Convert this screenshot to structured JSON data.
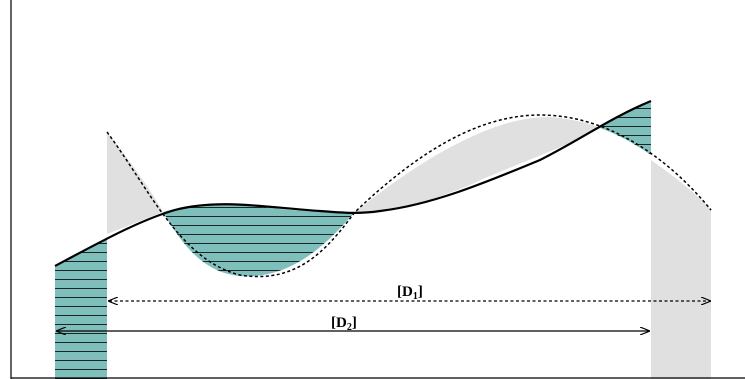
{
  "diagram": {
    "labels": {
      "d1": {
        "main": "[D",
        "sub": "1",
        "close": "]"
      },
      "d2": {
        "main": "[D",
        "sub": "2",
        "close": "]"
      }
    },
    "colors": {
      "hatched_fill": "#7fbfbb",
      "hatch_lines": "#000000",
      "grey_fill": "#e0e0e0",
      "curves": "#000000"
    }
  }
}
